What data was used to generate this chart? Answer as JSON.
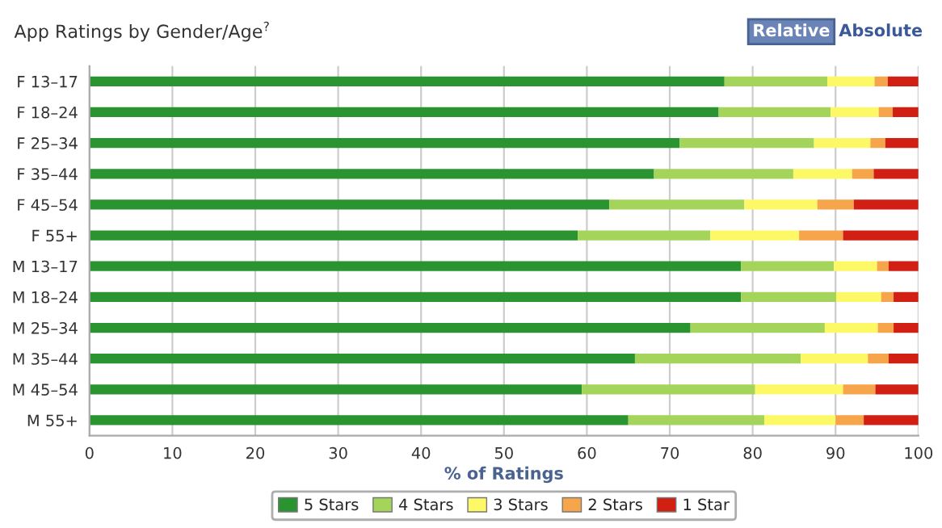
{
  "chart_data": {
    "type": "bar",
    "orientation": "horizontal",
    "stacked": true,
    "title": "App Ratings by Gender/Age$^{?}$",
    "annotations": [
      "Relative",
      "Absolute"
    ],
    "xlabel": "% of Ratings",
    "categories": [
      "F 13–17",
      "F 18–24",
      "F 25–34",
      "F 35–44",
      "F 45–54",
      "F 55+",
      "M 13–17",
      "M 18–24",
      "M 25–34",
      "M 35–44",
      "M 45–54",
      "M 55+"
    ],
    "series": [
      {
        "name": "5 Stars",
        "color": "#2a9431",
        "values": [
          76.6,
          75.9,
          71.2,
          68.1,
          62.7,
          58.9,
          78.6,
          78.6,
          72.5,
          65.8,
          59.4,
          65.0
        ]
      },
      {
        "name": "4 Stars",
        "color": "#a5d45a",
        "values": [
          12.4,
          13.5,
          16.2,
          16.8,
          16.3,
          16.0,
          11.2,
          11.5,
          16.2,
          20.0,
          20.9,
          16.4
        ]
      },
      {
        "name": "3 Stars",
        "color": "#fdf966",
        "values": [
          5.7,
          5.8,
          6.8,
          7.1,
          8.8,
          10.7,
          5.2,
          5.4,
          6.4,
          8.1,
          10.6,
          8.6
        ]
      },
      {
        "name": "2 Stars",
        "color": "#f7a54a",
        "values": [
          1.6,
          1.7,
          1.8,
          2.6,
          4.4,
          5.3,
          1.4,
          1.5,
          1.9,
          2.5,
          3.9,
          3.4
        ]
      },
      {
        "name": "1 Star",
        "color": "#d11f14",
        "values": [
          3.7,
          3.1,
          4.0,
          5.4,
          7.8,
          9.1,
          3.6,
          3.0,
          3.0,
          3.6,
          5.2,
          6.6
        ]
      }
    ],
    "xlim": [
      0,
      100
    ],
    "xticks": [
      0,
      10,
      20,
      30,
      40,
      50,
      60,
      70,
      80,
      90,
      100
    ],
    "grid": "x",
    "legend": "bottom"
  }
}
